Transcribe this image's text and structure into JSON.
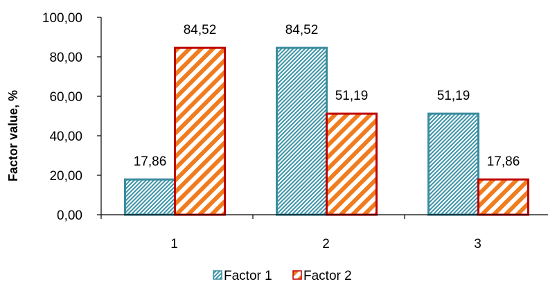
{
  "chart_data": {
    "type": "bar",
    "title": "",
    "xlabel": "",
    "ylabel": "Factor value, %",
    "categories": [
      "1",
      "2",
      "3"
    ],
    "series": [
      {
        "name": "Factor 1",
        "values": [
          17.86,
          84.52,
          51.19
        ],
        "value_labels": [
          "17,86",
          "84,52",
          "51,19"
        ],
        "fill": "#2f8fa3",
        "stroke": "#3a8c9e"
      },
      {
        "name": "Factor 2",
        "values": [
          84.52,
          51.19,
          17.86
        ],
        "value_labels": [
          "84,52",
          "51,19",
          "17,86"
        ],
        "fill": "#f07c20",
        "stroke": "#c00000"
      }
    ],
    "ylim": [
      0,
      100
    ],
    "yticks": [
      0,
      20,
      40,
      60,
      80,
      100
    ],
    "ytick_labels": [
      "0,00",
      "20,00",
      "40,00",
      "60,00",
      "80,00",
      "100,00"
    ],
    "grid": false,
    "legend_position": "bottom"
  }
}
